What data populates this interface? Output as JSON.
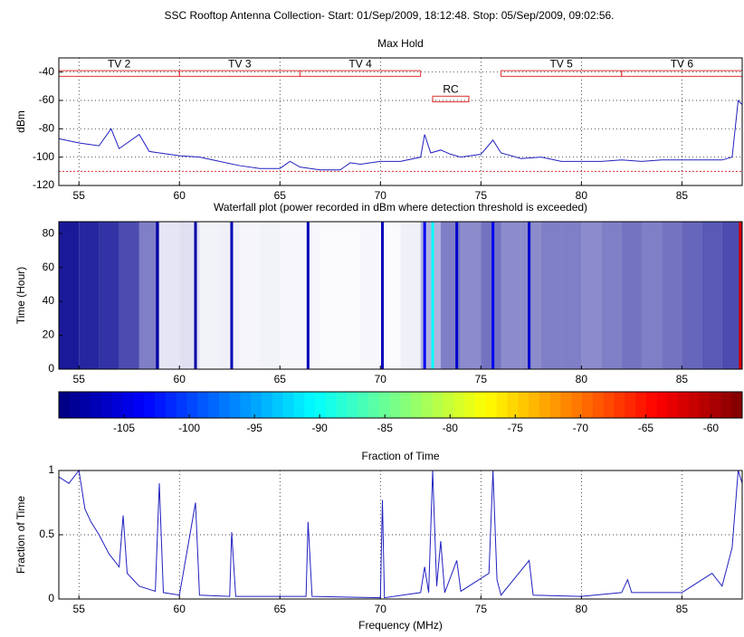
{
  "title": "SSC Rooftop Antenna Collection- Start: 01/Sep/2009, 18:12:48. Stop:  05/Sep/2009, 09:02:56.",
  "chart_data": [
    {
      "type": "line",
      "title": "Max Hold",
      "ylabel": "dBm",
      "xlim": [
        54,
        88
      ],
      "ylim": [
        -120,
        -30
      ],
      "xticks": [
        55,
        60,
        65,
        70,
        75,
        80,
        85
      ],
      "yticks": [
        -120,
        -100,
        -80,
        -60,
        -40
      ],
      "grid": true,
      "x": [
        54,
        55,
        56,
        56.6,
        57,
        58,
        58.5,
        59,
        60,
        61,
        62,
        63,
        64,
        65,
        65.5,
        66,
        67,
        68,
        68.5,
        69,
        70,
        71,
        72,
        72.2,
        72.5,
        73,
        73.5,
        74,
        75,
        75.6,
        76,
        77,
        78,
        79,
        80,
        81,
        82,
        83,
        84,
        85,
        86,
        87,
        87.5,
        87.8,
        88
      ],
      "series": [
        {
          "color": "#2020c0",
          "values": [
            -87,
            -90,
            -92,
            -80,
            -94,
            -84,
            -96,
            -97,
            -99,
            -100,
            -103,
            -106,
            -108,
            -108,
            -103,
            -107,
            -109,
            -109,
            -104,
            -105,
            -103,
            -103,
            -100,
            -84,
            -97,
            -95,
            -98,
            -100,
            -98,
            -88,
            -97,
            -101,
            -100,
            -103,
            -103,
            -103,
            -102,
            -103,
            -102,
            -102,
            -102,
            -102,
            -100,
            -60,
            -63
          ]
        }
      ],
      "threshold": -110,
      "threshold_color": "#e03030",
      "channels": [
        {
          "label": "TV 2",
          "x": [
            54,
            60
          ],
          "y": [
            -43,
            -39
          ]
        },
        {
          "label": "TV 3",
          "x": [
            60,
            66
          ],
          "y": [
            -43,
            -39
          ]
        },
        {
          "label": "TV 4",
          "x": [
            66,
            72
          ],
          "y": [
            -43,
            -39
          ]
        },
        {
          "label": "RC",
          "x": [
            72.6,
            74.4
          ],
          "y": [
            -61,
            -57
          ]
        },
        {
          "label": "TV 5",
          "x": [
            76,
            82
          ],
          "y": [
            -43,
            -39
          ]
        },
        {
          "label": "TV 6",
          "x": [
            82,
            88
          ],
          "y": [
            -43,
            -39
          ]
        }
      ]
    },
    {
      "type": "waterfall",
      "title": "Waterfall plot (power recorded in dBm where detection threshold is exceeded)",
      "ylabel": "Time (Hour)",
      "xlim": [
        54,
        88
      ],
      "ylim": [
        0,
        87
      ],
      "xticks": [
        55,
        60,
        65,
        70,
        75,
        80,
        85
      ],
      "yticks": [
        0,
        20,
        40,
        60,
        80
      ],
      "color": "#00008f",
      "bins": [
        54,
        55,
        56,
        57,
        58,
        59,
        60,
        61,
        62,
        63,
        64,
        65,
        66,
        67,
        68,
        69,
        70,
        71,
        72,
        73,
        74,
        75,
        76,
        77,
        78,
        79,
        80,
        81,
        82,
        83,
        84,
        85,
        86,
        87,
        88
      ],
      "occupancy": [
        0.9,
        0.85,
        0.8,
        0.7,
        0.5,
        0.1,
        0.12,
        0.05,
        0.06,
        0.04,
        0.05,
        0.03,
        0.03,
        0.02,
        0.02,
        0.03,
        0.02,
        0.06,
        0.3,
        0.5,
        0.45,
        0.55,
        0.45,
        0.45,
        0.5,
        0.5,
        0.45,
        0.5,
        0.55,
        0.5,
        0.55,
        0.6,
        0.65,
        0.7
      ],
      "lines": [
        {
          "x": 58.9,
          "level": -108
        },
        {
          "x": 60.8,
          "level": -108
        },
        {
          "x": 62.6,
          "level": -107
        },
        {
          "x": 66.4,
          "level": -107
        },
        {
          "x": 70.1,
          "level": -107
        },
        {
          "x": 72.2,
          "level": -104
        },
        {
          "x": 72.6,
          "level": -90
        },
        {
          "x": 73.8,
          "level": -106
        },
        {
          "x": 75.6,
          "level": -104
        },
        {
          "x": 77.4,
          "level": -106
        },
        {
          "x": 87.9,
          "level": -62
        }
      ]
    },
    {
      "type": "colorbar",
      "xlim": [
        -110,
        -57.6
      ],
      "xticks": [
        -105,
        -100,
        -95,
        -90,
        -85,
        -80,
        -75,
        -70,
        -65,
        -60
      ]
    },
    {
      "type": "line",
      "title": "Fraction of Time",
      "ylabel": "Fraction of Time",
      "xlabel": "Frequency (MHz)",
      "xlim": [
        54,
        88
      ],
      "ylim": [
        0,
        1
      ],
      "xticks": [
        55,
        60,
        65,
        70,
        75,
        80,
        85
      ],
      "yticks": [
        0,
        0.5,
        1
      ],
      "grid": true,
      "x": [
        54,
        54.5,
        55,
        55.3,
        55.6,
        56,
        56.5,
        57,
        57.2,
        57.4,
        58,
        58.8,
        59,
        59.2,
        60,
        60.8,
        61,
        62.5,
        62.6,
        62.8,
        66.3,
        66.4,
        66.6,
        70,
        70.1,
        70.2,
        72,
        72.2,
        72.4,
        72.6,
        72.8,
        73,
        73.2,
        73.8,
        74,
        75.4,
        75.6,
        75.8,
        76,
        77.4,
        77.6,
        80,
        82,
        82.3,
        82.5,
        85,
        86.5,
        87,
        87.5,
        87.8,
        88
      ],
      "series": [
        {
          "color": "#2020c0",
          "values": [
            0.95,
            0.9,
            1,
            0.7,
            0.6,
            0.5,
            0.35,
            0.25,
            0.65,
            0.2,
            0.1,
            0.06,
            0.9,
            0.05,
            0.03,
            0.75,
            0.03,
            0.02,
            0.52,
            0.02,
            0.02,
            0.6,
            0.02,
            0.01,
            0.77,
            0.01,
            0.05,
            0.25,
            0.05,
            1,
            0.1,
            0.45,
            0.05,
            0.3,
            0.06,
            0.2,
            1,
            0.15,
            0.03,
            0.3,
            0.03,
            0.02,
            0.05,
            0.15,
            0.05,
            0.05,
            0.2,
            0.1,
            0.4,
            1,
            0.9
          ]
        }
      ]
    }
  ]
}
